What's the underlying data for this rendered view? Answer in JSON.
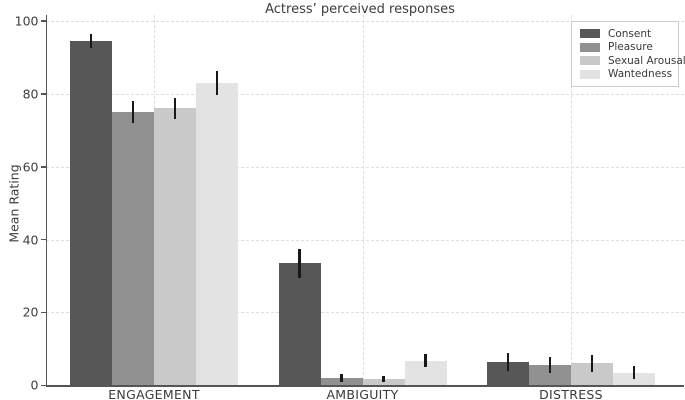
{
  "title": "Actress’ perceived responses",
  "ylabel": "Mean Rating",
  "chart_data": {
    "type": "bar",
    "title": "Actress’ perceived responses",
    "xlabel": "",
    "ylabel": "Mean Rating",
    "categories": [
      "ENGAGEMENT",
      "AMBIGUITY",
      "DISTRESS"
    ],
    "series": [
      {
        "name": "Consent",
        "color": "#575757",
        "values": [
          94.5,
          33.5,
          6.5
        ],
        "errors": [
          2.0,
          4.0,
          2.5
        ]
      },
      {
        "name": "Pleasure",
        "color": "#919191",
        "values": [
          75.0,
          2.0,
          5.5
        ],
        "errors": [
          3.0,
          1.0,
          2.2
        ]
      },
      {
        "name": "Sexual Arousal",
        "color": "#c9c9c9",
        "values": [
          76.0,
          1.8,
          6.0
        ],
        "errors": [
          3.0,
          0.8,
          2.4
        ]
      },
      {
        "name": "Wantedness",
        "color": "#e3e3e3",
        "values": [
          83.0,
          6.8,
          3.5
        ],
        "errors": [
          3.2,
          1.9,
          1.8
        ]
      }
    ],
    "ylim": [
      0,
      100
    ],
    "yticks": [
      0,
      20,
      40,
      60,
      80,
      100
    ],
    "grid": "dashed horizontal gridlines at y ticks and dashed vertical gridlines at category centers",
    "legend_position": "upper right",
    "error_bars": true,
    "style_colors": {
      "axis": "#555555",
      "gridline": "#dedede",
      "error_bar": "#181818",
      "text": "#3a3a3a",
      "background": "#ffffff"
    }
  }
}
